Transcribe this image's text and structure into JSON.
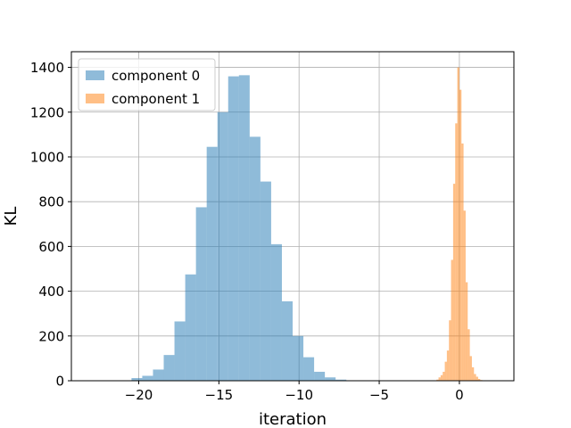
{
  "chart_data": {
    "type": "histogram",
    "xlabel": "iteration",
    "ylabel": "KL",
    "xlim": [
      -24.2,
      3.4
    ],
    "ylim": [
      0,
      1470
    ],
    "xticks": [
      -20,
      -15,
      -10,
      -5,
      0
    ],
    "xtick_labels": [
      "−20",
      "−15",
      "−10",
      "−5",
      "0"
    ],
    "yticks": [
      0,
      200,
      400,
      600,
      800,
      1000,
      1200,
      1400
    ],
    "ytick_labels": [
      "0",
      "200",
      "400",
      "600",
      "800",
      "1000",
      "1200",
      "1400"
    ],
    "grid": true,
    "legend_position": "top-left",
    "series": [
      {
        "name": "component 0",
        "color": "#1f77b4",
        "alpha": 0.5,
        "bin_width": 0.67,
        "bins": [
          {
            "x0": -20.45,
            "count": 12
          },
          {
            "x0": -19.78,
            "count": 22
          },
          {
            "x0": -19.11,
            "count": 50
          },
          {
            "x0": -18.44,
            "count": 115
          },
          {
            "x0": -17.77,
            "count": 265
          },
          {
            "x0": -17.1,
            "count": 475
          },
          {
            "x0": -16.43,
            "count": 775
          },
          {
            "x0": -15.76,
            "count": 1045
          },
          {
            "x0": -15.09,
            "count": 1200
          },
          {
            "x0": -14.42,
            "count": 1360
          },
          {
            "x0": -13.75,
            "count": 1365
          },
          {
            "x0": -13.08,
            "count": 1090
          },
          {
            "x0": -12.41,
            "count": 890
          },
          {
            "x0": -11.74,
            "count": 610
          },
          {
            "x0": -11.07,
            "count": 355
          },
          {
            "x0": -10.4,
            "count": 200
          },
          {
            "x0": -9.73,
            "count": 105
          },
          {
            "x0": -9.06,
            "count": 40
          },
          {
            "x0": -8.39,
            "count": 15
          },
          {
            "x0": -7.72,
            "count": 5
          }
        ]
      },
      {
        "name": "component 1",
        "color": "#ff7f0e",
        "alpha": 0.5,
        "bin_width": 0.13,
        "bins": [
          {
            "x0": -1.43,
            "count": 5
          },
          {
            "x0": -1.3,
            "count": 15
          },
          {
            "x0": -1.17,
            "count": 25
          },
          {
            "x0": -1.04,
            "count": 40
          },
          {
            "x0": -0.91,
            "count": 85
          },
          {
            "x0": -0.78,
            "count": 135
          },
          {
            "x0": -0.65,
            "count": 270
          },
          {
            "x0": -0.52,
            "count": 540
          },
          {
            "x0": -0.39,
            "count": 880
          },
          {
            "x0": -0.26,
            "count": 1150
          },
          {
            "x0": -0.13,
            "count": 1400
          },
          {
            "x0": 0.0,
            "count": 1300
          },
          {
            "x0": 0.13,
            "count": 1060
          },
          {
            "x0": 0.26,
            "count": 760
          },
          {
            "x0": 0.39,
            "count": 440
          },
          {
            "x0": 0.52,
            "count": 230
          },
          {
            "x0": 0.65,
            "count": 110
          },
          {
            "x0": 0.78,
            "count": 60
          },
          {
            "x0": 0.91,
            "count": 30
          },
          {
            "x0": 1.04,
            "count": 18
          },
          {
            "x0": 1.17,
            "count": 8
          },
          {
            "x0": 1.3,
            "count": 3
          }
        ]
      }
    ]
  }
}
